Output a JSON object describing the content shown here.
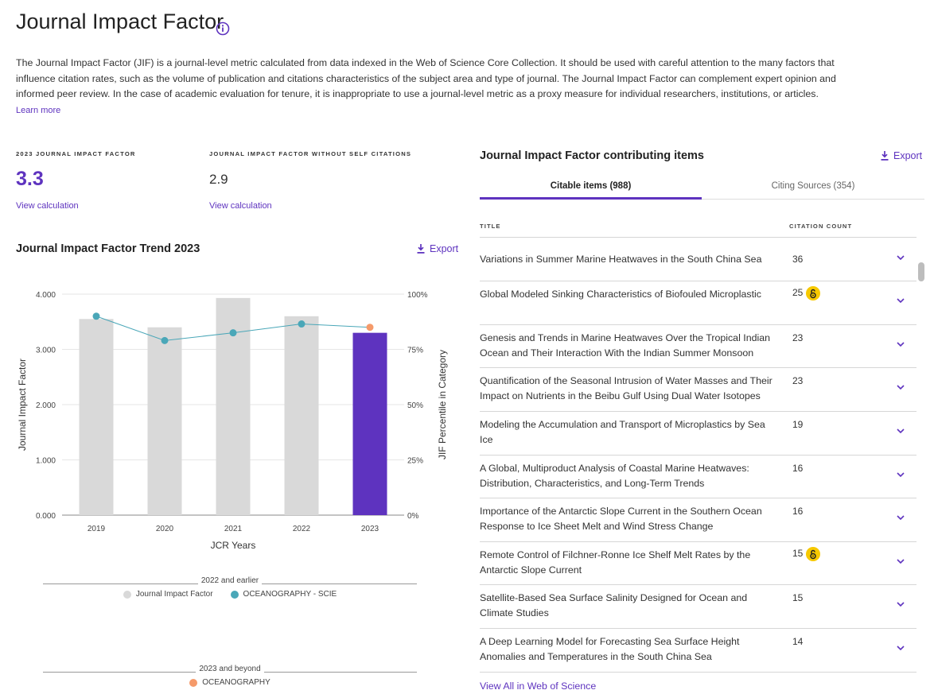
{
  "header": {
    "title": "Journal Impact Factor",
    "intro": "The Journal Impact Factor (JIF) is a journal-level metric calculated from data indexed in the Web of Science Core Collection. It should be used with careful attention to the many factors that influence citation rates, such as the volume of publication and citations characteristics of the subject area and type of journal. The Journal Impact Factor can complement expert opinion and informed peer review. In the case of academic evaluation for tenure, it is inappropriate to use a journal-level metric as a proxy measure for individual researchers, institutions, or articles.",
    "learn_more": "Learn more"
  },
  "metrics": {
    "jif_label": "2023 JOURNAL IMPACT FACTOR",
    "jif_value": "3.3",
    "jif_link": "View calculation",
    "noself_label": "JOURNAL IMPACT FACTOR WITHOUT SELF CITATIONS",
    "noself_value": "2.9",
    "noself_link": "View calculation"
  },
  "trend": {
    "title": "Journal Impact Factor Trend 2023",
    "export_label": "Export"
  },
  "chart_data": {
    "type": "bar",
    "categories": [
      "2019",
      "2020",
      "2021",
      "2022",
      "2023"
    ],
    "series": [
      {
        "name": "Journal Impact Factor",
        "axis": "left",
        "values": [
          3.55,
          3.4,
          3.93,
          3.6,
          3.3
        ]
      },
      {
        "name": "OCEANOGRAPHY - SCIE",
        "axis": "right",
        "type": "line",
        "values": [
          90,
          79,
          82.5,
          86.5,
          null
        ]
      },
      {
        "name": "OCEANOGRAPHY",
        "axis": "right",
        "type": "point",
        "values": [
          null,
          null,
          null,
          null,
          85
        ]
      }
    ],
    "xlabel": "JCR Years",
    "ylabel": "Journal Impact Factor",
    "y2label": "JIF Percentile in Category",
    "ylim": [
      0,
      4
    ],
    "y2lim": [
      0,
      100
    ],
    "yticks": [
      "0.000",
      "1.000",
      "2.000",
      "3.000",
      "4.000"
    ],
    "y2ticks": [
      "0%",
      "25%",
      "50%",
      "75%",
      "100%"
    ],
    "legend_groups": [
      {
        "title": "2022 and earlier",
        "items": [
          "Journal Impact Factor",
          "OCEANOGRAPHY - SCIE"
        ]
      },
      {
        "title": "2023 and beyond",
        "items": [
          "OCEANOGRAPHY"
        ]
      }
    ],
    "colors": {
      "bar": "#d9d9d9",
      "bar_current": "#5e33bf",
      "line": "#4aa7b8",
      "point_2023": "#f59a6a"
    }
  },
  "legend": {
    "group1_title": "2022 and earlier",
    "group1_item1": "Journal Impact Factor",
    "group1_item2": "OCEANOGRAPHY - SCIE",
    "group2_title": "2023 and beyond",
    "group2_item1": "OCEANOGRAPHY"
  },
  "contrib": {
    "title": "Journal Impact Factor contributing items",
    "export_label": "Export",
    "tab_citable": "Citable items (988)",
    "tab_citing": "Citing Sources (354)",
    "col_title": "TITLE",
    "col_count": "CITATION COUNT",
    "rows": [
      {
        "title": "Variations in Summer Marine Heatwaves in the South China Sea",
        "count": "36",
        "oa": false
      },
      {
        "title": "Global Modeled Sinking Characteristics of Biofouled Microplastic",
        "count": "25",
        "oa": true
      },
      {
        "title": "Genesis and Trends in Marine Heatwaves Over the Tropical Indian Ocean and Their Interaction With the Indian Summer Monsoon",
        "count": "23",
        "oa": false
      },
      {
        "title": "Quantification of the Seasonal Intrusion of Water Masses and Their Impact on Nutrients in the Beibu Gulf Using Dual Water Isotopes",
        "count": "23",
        "oa": false
      },
      {
        "title": "Modeling the Accumulation and Transport of Microplastics by Sea Ice",
        "count": "19",
        "oa": false
      },
      {
        "title": "A Global, Multiproduct Analysis of Coastal Marine Heatwaves: Distribution, Characteristics, and Long-Term Trends",
        "count": "16",
        "oa": false
      },
      {
        "title": "Importance of the Antarctic Slope Current in the Southern Ocean Response to Ice Sheet Melt and Wind Stress Change",
        "count": "16",
        "oa": false
      },
      {
        "title": "Remote Control of Filchner-Ronne Ice Shelf Melt Rates by the Antarctic Slope Current",
        "count": "15",
        "oa": true
      },
      {
        "title": "Satellite-Based Sea Surface Salinity Designed for Ocean and Climate Studies",
        "count": "15",
        "oa": false
      },
      {
        "title": "A Deep Learning Model for Forecasting Sea Surface Height Anomalies and Temperatures in the South China Sea",
        "count": "14",
        "oa": false
      }
    ],
    "view_all": "View All in Web of Science",
    "oa_icon": "open-access-icon"
  }
}
